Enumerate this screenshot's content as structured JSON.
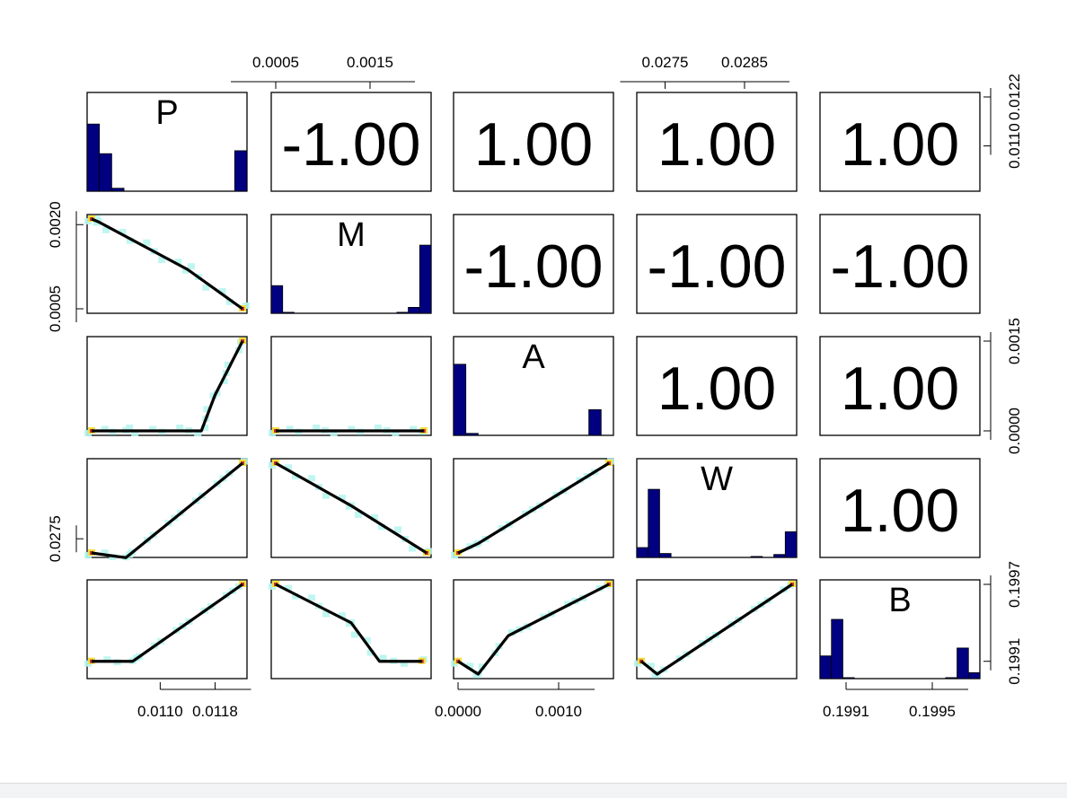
{
  "chart_data": {
    "type": "scatter-matrix",
    "variables": [
      "P",
      "M",
      "A",
      "W",
      "B"
    ],
    "axis_ticks": {
      "top": {
        "M": [
          "0.0005",
          "0.0015"
        ],
        "W": [
          "0.0275",
          "0.0285"
        ]
      },
      "bottom": {
        "P": [
          "0.0110",
          "0.0118"
        ],
        "A": [
          "0.0000",
          "0.0010"
        ],
        "B": [
          "0.1991",
          "0.1995"
        ]
      },
      "left": {
        "M": [
          "0.0005",
          "0.0020"
        ],
        "W": [
          "0.0275"
        ]
      },
      "right": {
        "P": [
          "0.0110",
          "0.0122"
        ],
        "A": [
          "0.0000",
          "0.0015"
        ],
        "B": [
          "0.1991",
          "0.1997"
        ]
      }
    },
    "correlations": [
      {
        "row": "P",
        "col": "M",
        "label": "-1.00"
      },
      {
        "row": "P",
        "col": "A",
        "label": "1.00"
      },
      {
        "row": "P",
        "col": "W",
        "label": "1.00"
      },
      {
        "row": "P",
        "col": "B",
        "label": "1.00"
      },
      {
        "row": "M",
        "col": "A",
        "label": "-1.00"
      },
      {
        "row": "M",
        "col": "W",
        "label": "-1.00"
      },
      {
        "row": "M",
        "col": "B",
        "label": "-1.00"
      },
      {
        "row": "A",
        "col": "W",
        "label": "1.00"
      },
      {
        "row": "A",
        "col": "B",
        "label": "1.00"
      },
      {
        "row": "W",
        "col": "B",
        "label": "1.00"
      }
    ],
    "histograms": {
      "P": [
        0.68,
        0.38,
        0.03,
        0,
        0,
        0,
        0,
        0,
        0,
        0,
        0,
        0,
        0.41
      ],
      "M": [
        0.28,
        0.01,
        0,
        0,
        0,
        0,
        0,
        0,
        0,
        0,
        0,
        0.01,
        0.06,
        0.69
      ],
      "A": [
        0.72,
        0.02,
        0,
        0,
        0,
        0,
        0,
        0,
        0,
        0,
        0,
        0.26,
        0
      ],
      "W": [
        0.1,
        0.69,
        0.04,
        0,
        0,
        0,
        0,
        0,
        0,
        0,
        0.01,
        0,
        0.03,
        0.26
      ],
      "B": [
        0.23,
        0.6,
        0.01,
        0,
        0,
        0,
        0,
        0,
        0,
        0,
        0,
        0.01,
        0.31,
        0.06
      ]
    },
    "lower_panels": {
      "M_vs_P": [
        [
          0.01,
          0.0021
        ],
        [
          0.0101,
          0.00205
        ],
        [
          0.0114,
          0.0012
        ],
        [
          0.0122,
          0.0005
        ]
      ],
      "A_vs_P": [
        [
          0.01,
          0.0
        ],
        [
          0.0105,
          0.0
        ],
        [
          0.0116,
          0.0
        ],
        [
          0.0118,
          0.0006
        ],
        [
          0.0122,
          0.0015
        ]
      ],
      "A_vs_M": [
        [
          0.0005,
          0.0
        ],
        [
          0.00207,
          0.0
        ]
      ],
      "W_vs_P": [
        [
          0.01,
          0.0272
        ],
        [
          0.0105,
          0.0271
        ],
        [
          0.0122,
          0.0291
        ]
      ],
      "W_vs_M": [
        [
          0.0005,
          0.0291
        ],
        [
          0.0013,
          0.0282
        ],
        [
          0.0021,
          0.0272
        ]
      ],
      "W_vs_A": [
        [
          0.0,
          0.0272
        ],
        [
          0.0002,
          0.0274
        ],
        [
          0.0015,
          0.0291
        ]
      ],
      "B_vs_P": [
        [
          0.01,
          0.1991
        ],
        [
          0.0106,
          0.1991
        ],
        [
          0.0122,
          0.1997
        ]
      ],
      "B_vs_M": [
        [
          0.0005,
          0.1997
        ],
        [
          0.0013,
          0.1994
        ],
        [
          0.0016,
          0.1991
        ],
        [
          0.00205,
          0.1991
        ]
      ],
      "B_vs_A": [
        [
          0.0,
          0.1991
        ],
        [
          0.0002,
          0.199
        ],
        [
          0.0005,
          0.1993
        ],
        [
          0.0015,
          0.1997
        ]
      ],
      "B_vs_W": [
        [
          0.0272,
          0.1991
        ],
        [
          0.0274,
          0.199
        ],
        [
          0.0291,
          0.1997
        ]
      ]
    },
    "colors": {
      "histogram_fill": "#000080",
      "smooth_line": "#000000",
      "density_low": "#b8f5ee",
      "density_high": "#f2e03a",
      "density_max": "#c8323a",
      "panel_border": "#000000"
    }
  }
}
